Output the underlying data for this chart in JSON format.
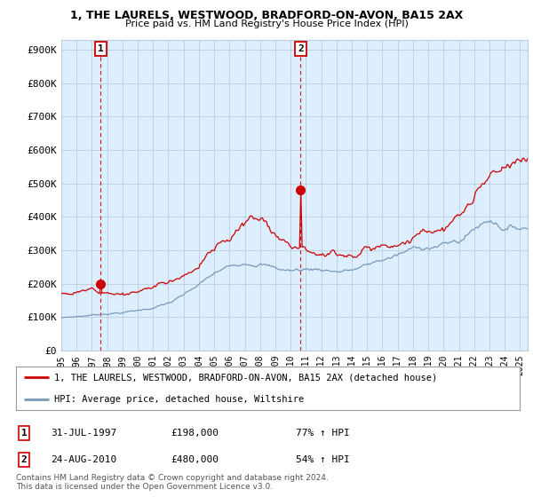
{
  "title1": "1, THE LAURELS, WESTWOOD, BRADFORD-ON-AVON, BA15 2AX",
  "title2": "Price paid vs. HM Land Registry's House Price Index (HPI)",
  "ylabel_ticks": [
    "£0",
    "£100K",
    "£200K",
    "£300K",
    "£400K",
    "£500K",
    "£600K",
    "£700K",
    "£800K",
    "£900K"
  ],
  "ytick_vals": [
    0,
    100000,
    200000,
    300000,
    400000,
    500000,
    600000,
    700000,
    800000,
    900000
  ],
  "ylim": [
    0,
    930000
  ],
  "xlim_start": 1995.0,
  "xlim_end": 2025.5,
  "purchase1_x": 1997.58,
  "purchase1_y": 198000,
  "purchase2_x": 2010.65,
  "purchase2_y": 480000,
  "vline1_x": 1997.58,
  "vline2_x": 2010.65,
  "red_line_color": "#cc0000",
  "blue_line_color": "#7799bb",
  "vline_color": "#cc0000",
  "grid_color": "#bbccdd",
  "bg_color": "#ddeeff",
  "plot_bg_color": "#ddeeff",
  "outer_bg_color": "#ffffff",
  "legend_label_red": "1, THE LAURELS, WESTWOOD, BRADFORD-ON-AVON, BA15 2AX (detached house)",
  "legend_label_blue": "HPI: Average price, detached house, Wiltshire",
  "table_entries": [
    {
      "num": "1",
      "date": "31-JUL-1997",
      "price": "£198,000",
      "change": "77% ↑ HPI"
    },
    {
      "num": "2",
      "date": "24-AUG-2010",
      "price": "£480,000",
      "change": "54% ↑ HPI"
    }
  ],
  "footnote": "Contains HM Land Registry data © Crown copyright and database right 2024.\nThis data is licensed under the Open Government Licence v3.0.",
  "xtick_years": [
    1995,
    1996,
    1997,
    1998,
    1999,
    2000,
    2001,
    2002,
    2003,
    2004,
    2005,
    2006,
    2007,
    2008,
    2009,
    2010,
    2011,
    2012,
    2013,
    2014,
    2015,
    2016,
    2017,
    2018,
    2019,
    2020,
    2021,
    2022,
    2023,
    2024,
    2025
  ]
}
